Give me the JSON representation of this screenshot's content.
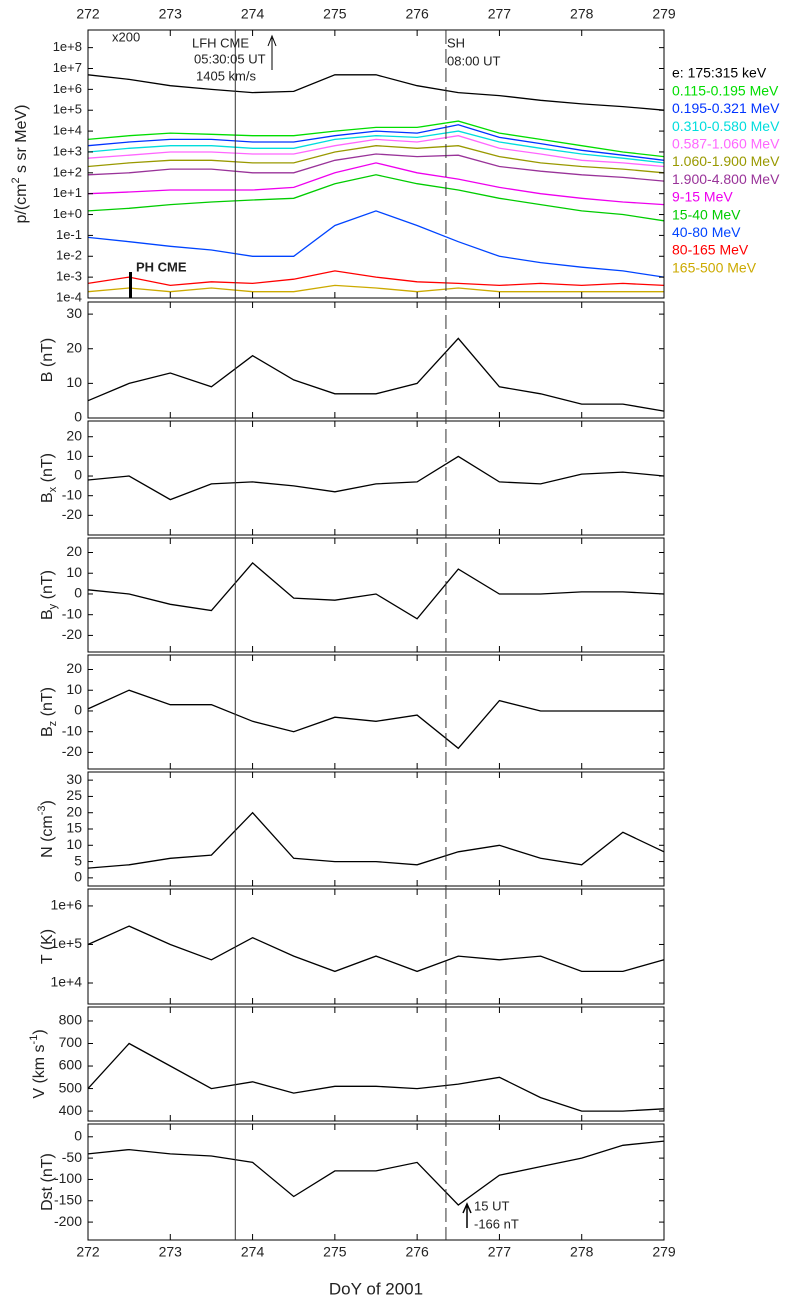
{
  "chart_data": [
    {
      "type": "line",
      "log": true,
      "ylabel": [
        {
          "text": "p/(cm"
        },
        {
          "text": "2",
          "shift": "super"
        },
        {
          "text": " s sr MeV)"
        }
      ],
      "xlim": [
        272,
        279
      ],
      "xticks": [
        272,
        273,
        274,
        275,
        276,
        277,
        278,
        279
      ],
      "ylim": [
        0.0001,
        700000000
      ],
      "yticks": [
        {
          "value": 0.0001,
          "label": "1e-4"
        },
        {
          "value": 0.001,
          "label": "1e-3"
        },
        {
          "value": 0.01,
          "label": "1e-2"
        },
        {
          "value": 0.1,
          "label": "1e-1"
        },
        {
          "value": 1,
          "label": "1e+0"
        },
        {
          "value": 10,
          "label": "1e+1"
        },
        {
          "value": 100,
          "label": "1e+2"
        },
        {
          "value": 1000,
          "label": "1e+3"
        },
        {
          "value": 10000,
          "label": "1e+4"
        },
        {
          "value": 100000,
          "label": "1e+5"
        },
        {
          "value": 1000000,
          "label": "1e+6"
        },
        {
          "value": 10000000,
          "label": "1e+7"
        },
        {
          "value": 100000000,
          "label": "1e+8"
        }
      ],
      "markers": [
        {
          "x": 273.79,
          "style": "solid"
        },
        {
          "x": 276.35,
          "style": "dashed"
        }
      ],
      "annotations": [
        "x200",
        "LFH CME",
        "05:30:05 UT",
        "1405 km/s",
        "SH",
        "08:00 UT",
        "PH CME"
      ],
      "x": [
        272,
        272.5,
        273,
        273.5,
        274,
        274.5,
        275,
        275.5,
        276,
        276.5,
        277,
        277.5,
        278,
        278.5,
        279
      ],
      "series": [
        {
          "name": "e: 175:315 keV",
          "color": "#000000",
          "values": [
            5000000.0,
            3000000.0,
            1500000.0,
            1000000.0,
            700000.0,
            800000.0,
            5000000.0,
            5000000.0,
            1500000.0,
            700000.0,
            500000.0,
            300000.0,
            200000.0,
            150000.0,
            100000.0
          ]
        },
        {
          "name": "0.115-0.195 MeV",
          "color": "#00dd00",
          "values": [
            4000,
            6000,
            8000,
            7000,
            6000,
            6000,
            10000,
            15000,
            15000,
            30000,
            8000,
            4000,
            2000,
            1000,
            600
          ]
        },
        {
          "name": "0.195-0.321 MeV",
          "color": "#0033ff",
          "values": [
            2000,
            3000,
            4000,
            4000,
            3000,
            3000,
            6000,
            10000,
            8000,
            20000,
            5000,
            2500,
            1200,
            700,
            400
          ]
        },
        {
          "name": "0.310-0.580 MeV",
          "color": "#00dddd",
          "values": [
            1000,
            1500,
            2000,
            2000,
            1500,
            1500,
            4000,
            6000,
            5000,
            10000,
            3000,
            1500,
            800,
            500,
            300
          ]
        },
        {
          "name": "0.587-1.060 MeV",
          "color": "#ff66ff",
          "values": [
            500,
            700,
            1000,
            1000,
            800,
            800,
            2000,
            4000,
            3000,
            6000,
            1500,
            800,
            400,
            300,
            200
          ]
        },
        {
          "name": "1.060-1.900 MeV",
          "color": "#999900",
          "values": [
            200,
            300,
            400,
            400,
            300,
            300,
            1000,
            2000,
            1500,
            2000,
            600,
            300,
            200,
            150,
            100
          ]
        },
        {
          "name": "1.900-4.800 MeV",
          "color": "#993399",
          "values": [
            80,
            100,
            150,
            150,
            100,
            100,
            400,
            800,
            600,
            700,
            200,
            120,
            80,
            60,
            40
          ]
        },
        {
          "name": "9-15 MeV",
          "color": "#ee00ee",
          "values": [
            10,
            12,
            15,
            15,
            15,
            20,
            100,
            300,
            100,
            50,
            20,
            10,
            6,
            4,
            3
          ]
        },
        {
          "name": "15-40 MeV",
          "color": "#00cc00",
          "values": [
            1.5,
            2,
            3,
            4,
            5,
            6,
            30,
            80,
            30,
            15,
            6,
            3,
            1.5,
            1,
            0.5
          ]
        },
        {
          "name": "40-80 MeV",
          "color": "#0044ff",
          "values": [
            0.08,
            0.05,
            0.03,
            0.02,
            0.01,
            0.01,
            0.3,
            1.5,
            0.3,
            0.05,
            0.01,
            0.005,
            0.003,
            0.002,
            0.001
          ]
        },
        {
          "name": "80-165 MeV",
          "color": "#ff0000",
          "values": [
            0.0005,
            0.001,
            0.0004,
            0.0006,
            0.0005,
            0.0008,
            0.002,
            0.001,
            0.0006,
            0.0005,
            0.0004,
            0.0005,
            0.0004,
            0.0005,
            0.0004
          ]
        },
        {
          "name": "165-500 MeV",
          "color": "#ccaa00",
          "values": [
            0.0002,
            0.0003,
            0.0002,
            0.0003,
            0.0002,
            0.0002,
            0.0004,
            0.0003,
            0.0002,
            0.0003,
            0.0002,
            0.0002,
            0.0002,
            0.0002,
            0.0002
          ]
        }
      ]
    },
    {
      "type": "line",
      "ylabel": [
        {
          "text": "B (nT)"
        }
      ],
      "ylim": [
        0,
        33.5
      ],
      "yticks": [
        0,
        10,
        20,
        30
      ],
      "x": [
        272,
        272.5,
        273,
        273.5,
        274,
        274.5,
        275,
        275.5,
        276,
        276.5,
        277,
        277.5,
        278,
        278.5,
        279
      ],
      "series": [
        {
          "color": "#000000",
          "values": [
            5,
            10,
            13,
            9,
            18,
            11,
            7,
            7,
            10,
            23,
            9,
            7,
            4,
            4,
            2
          ]
        }
      ]
    },
    {
      "type": "line",
      "ylabel": [
        {
          "text": "B"
        },
        {
          "text": "x",
          "shift": "sub"
        },
        {
          "text": " (nT)"
        }
      ],
      "ylim": [
        -30,
        28
      ],
      "yticks": [
        -20,
        -10,
        0,
        10,
        20
      ],
      "x": [
        272,
        272.5,
        273,
        273.5,
        274,
        274.5,
        275,
        275.5,
        276,
        276.5,
        277,
        277.5,
        278,
        278.5,
        279
      ],
      "series": [
        {
          "color": "#000000",
          "values": [
            -2,
            0,
            -12,
            -4,
            -3,
            -5,
            -8,
            -4,
            -3,
            10,
            -3,
            -4,
            1,
            2,
            0
          ]
        }
      ]
    },
    {
      "type": "line",
      "ylabel": [
        {
          "text": "B"
        },
        {
          "text": "y",
          "shift": "sub"
        },
        {
          "text": " (nT)"
        }
      ],
      "ylim": [
        -28,
        27
      ],
      "yticks": [
        -20,
        -10,
        0,
        10,
        20
      ],
      "x": [
        272,
        272.5,
        273,
        273.5,
        274,
        274.5,
        275,
        275.5,
        276,
        276.5,
        277,
        277.5,
        278,
        278.5,
        279
      ],
      "series": [
        {
          "color": "#000000",
          "values": [
            2,
            0,
            -5,
            -8,
            15,
            -2,
            -3,
            0,
            -12,
            12,
            0,
            0,
            1,
            1,
            0
          ]
        }
      ]
    },
    {
      "type": "line",
      "ylabel": [
        {
          "text": "B"
        },
        {
          "text": "z",
          "shift": "sub"
        },
        {
          "text": " (nT)"
        }
      ],
      "ylim": [
        -28,
        27
      ],
      "yticks": [
        -20,
        -10,
        0,
        10,
        20
      ],
      "x": [
        272,
        272.5,
        273,
        273.5,
        274,
        274.5,
        275,
        275.5,
        276,
        276.5,
        277,
        277.5,
        278,
        278.5,
        279
      ],
      "series": [
        {
          "color": "#000000",
          "values": [
            1,
            10,
            3,
            3,
            -5,
            -10,
            -3,
            -5,
            -2,
            -18,
            5,
            0,
            0,
            0,
            0
          ]
        }
      ]
    },
    {
      "type": "line",
      "ylabel": [
        {
          "text": "N (cm"
        },
        {
          "text": "-3",
          "shift": "super"
        },
        {
          "text": ")"
        }
      ],
      "ylim": [
        -2.5,
        32.5
      ],
      "yticks": [
        0,
        5,
        10,
        15,
        20,
        25,
        30
      ],
      "x": [
        272,
        272.5,
        273,
        273.5,
        274,
        274.5,
        275,
        275.5,
        276,
        276.5,
        277,
        277.5,
        278,
        278.5,
        279
      ],
      "series": [
        {
          "color": "#000000",
          "values": [
            3,
            4,
            6,
            7,
            20,
            6,
            5,
            5,
            4,
            8,
            10,
            6,
            4,
            14,
            8
          ]
        }
      ]
    },
    {
      "type": "line",
      "log": true,
      "ylabel": [
        {
          "text": "T (K)"
        }
      ],
      "ylim": [
        2850,
        2750000
      ],
      "yticks": [
        {
          "value": 10000,
          "label": "1e+4"
        },
        {
          "value": 100000,
          "label": "1e+5"
        },
        {
          "value": 1000000,
          "label": "1e+6"
        }
      ],
      "x": [
        272,
        272.5,
        273,
        273.5,
        274,
        274.5,
        275,
        275.5,
        276,
        276.5,
        277,
        277.5,
        278,
        278.5,
        279
      ],
      "series": [
        {
          "color": "#000000",
          "values": [
            100000,
            300000,
            100000,
            40000,
            150000,
            50000,
            20000,
            50000,
            20000,
            50000,
            40000,
            50000,
            20000,
            20000,
            40000
          ]
        }
      ]
    },
    {
      "type": "line",
      "ylabel": [
        {
          "text": "V (km s"
        },
        {
          "text": "-1",
          "shift": "super"
        },
        {
          "text": ")"
        }
      ],
      "ylim": [
        356,
        862
      ],
      "yticks": [
        400,
        500,
        600,
        700,
        800
      ],
      "x": [
        272,
        272.5,
        273,
        273.5,
        274,
        274.5,
        275,
        275.5,
        276,
        276.5,
        277,
        277.5,
        278,
        278.5,
        279
      ],
      "series": [
        {
          "color": "#000000",
          "values": [
            500,
            700,
            600,
            500,
            530,
            480,
            510,
            510,
            500,
            520,
            550,
            460,
            400,
            400,
            410
          ]
        }
      ]
    },
    {
      "type": "line",
      "ylabel": [
        {
          "text": "Dst (nT)"
        }
      ],
      "ylim": [
        -242,
        30
      ],
      "yticks": [
        -200,
        -150,
        -100,
        -50,
        0
      ],
      "xlim": [
        272,
        279
      ],
      "xticks": [
        272,
        273,
        274,
        275,
        276,
        277,
        278,
        279
      ],
      "xlabel": "DoY of 2001",
      "annotations": [
        "15 UT",
        "-166 nT"
      ],
      "x": [
        272,
        272.5,
        273,
        273.5,
        274,
        274.5,
        275,
        275.5,
        276,
        276.5,
        277,
        277.5,
        278,
        278.5,
        279
      ],
      "series": [
        {
          "color": "#000000",
          "values": [
            -40,
            -30,
            -40,
            -45,
            -60,
            -140,
            -80,
            -80,
            -60,
            -160,
            -90,
            -70,
            -50,
            -20,
            -10
          ]
        }
      ]
    }
  ]
}
